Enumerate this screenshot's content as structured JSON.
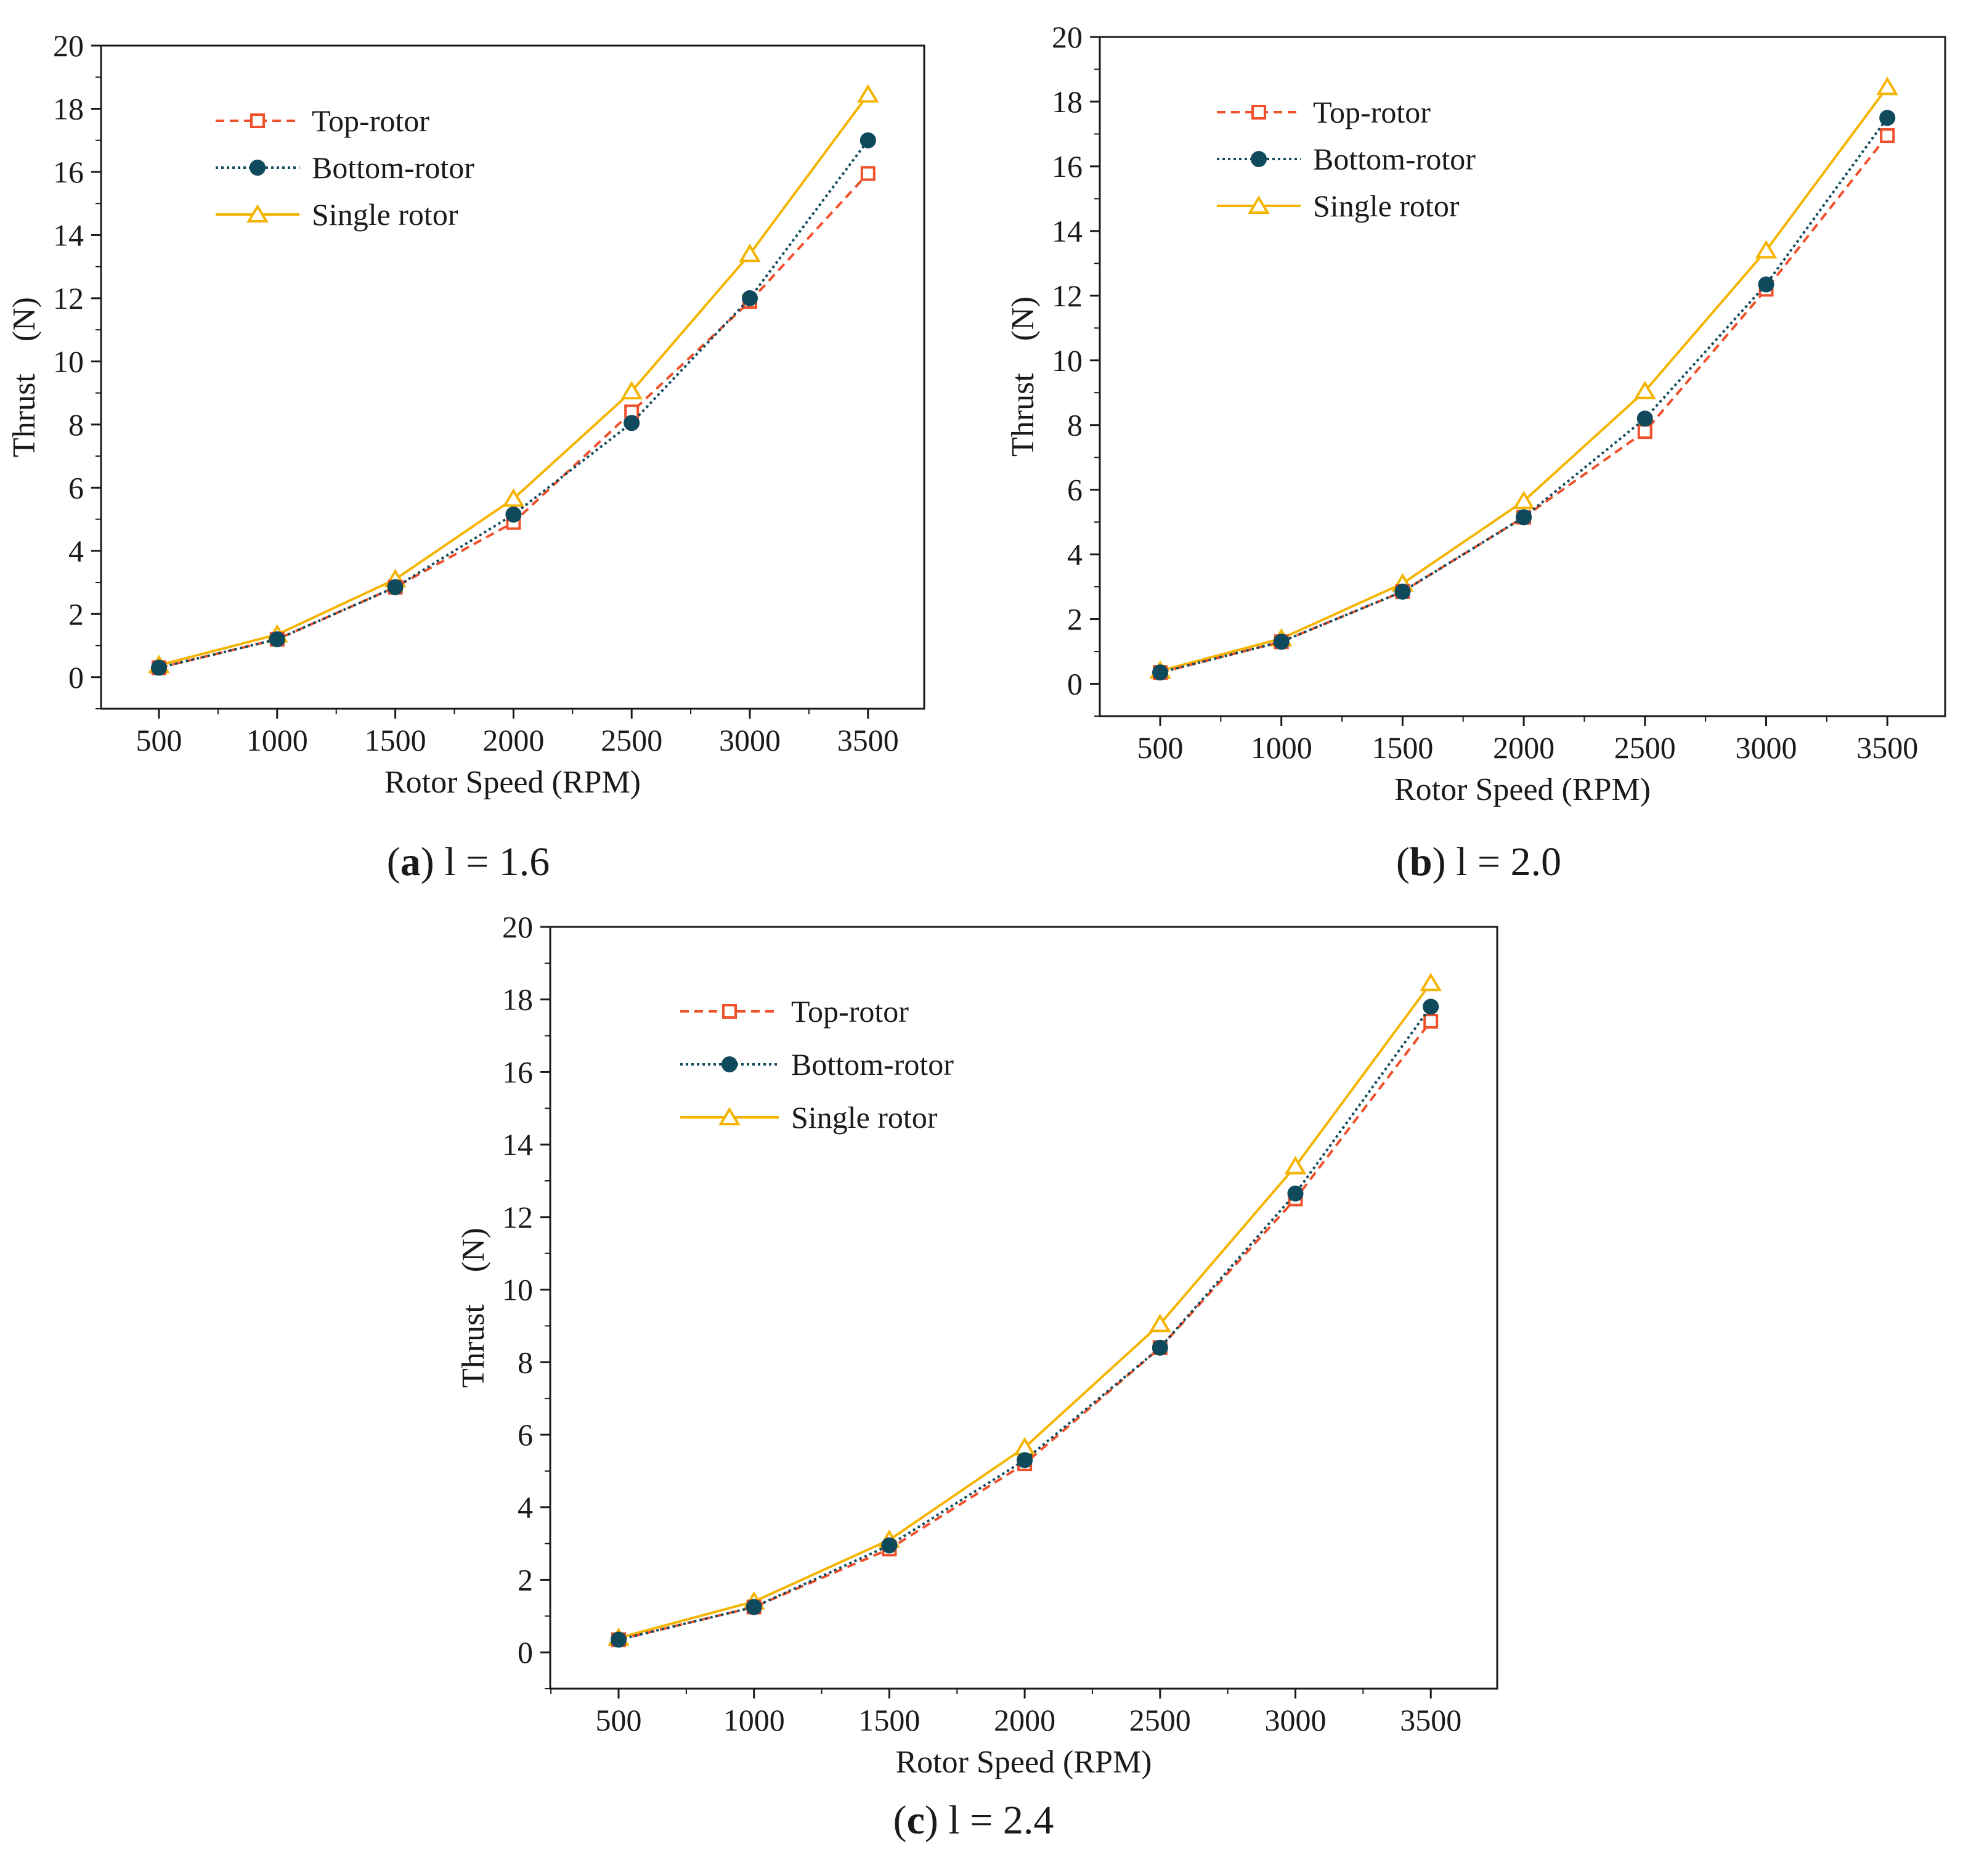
{
  "colors": {
    "top_rotor": "#f0502a",
    "bottom_rotor": "#0f4a5c",
    "single_rotor": "#f5b400",
    "axis": "#1a1a1a"
  },
  "chart_data": [
    {
      "id": "a",
      "type": "line",
      "caption": {
        "letter": "a",
        "text": "l = 1.6"
      },
      "xlabel": "Rotor Speed (RPM)",
      "ylabel": "Thrust　(N)",
      "x": [
        500,
        1000,
        1500,
        2000,
        2500,
        3000,
        3500
      ],
      "xticks": [
        "500",
        "1000",
        "1500",
        "2000",
        "2500",
        "3000",
        "3500"
      ],
      "yticks": [
        "0",
        "2",
        "4",
        "6",
        "8",
        "10",
        "12",
        "14",
        "16",
        "18",
        "20"
      ],
      "ylim": [
        -1,
        20
      ],
      "legend_position": "top-left",
      "series": [
        {
          "name": "Top-rotor",
          "marker": "square",
          "line": "dashed",
          "values": [
            0.3,
            1.2,
            2.85,
            4.9,
            8.4,
            11.9,
            15.95
          ]
        },
        {
          "name": "Bottom-rotor",
          "marker": "circle",
          "line": "dotted",
          "values": [
            0.3,
            1.2,
            2.85,
            5.15,
            8.05,
            12.0,
            17.0
          ]
        },
        {
          "name": "Single rotor",
          "marker": "triangle",
          "line": "solid",
          "values": [
            0.38,
            1.35,
            3.1,
            5.65,
            9.05,
            13.4,
            18.45
          ]
        }
      ]
    },
    {
      "id": "b",
      "type": "line",
      "caption": {
        "letter": "b",
        "text": "l = 2.0"
      },
      "xlabel": "Rotor Speed (RPM)",
      "ylabel": "Thrust　(N)",
      "x": [
        500,
        1000,
        1500,
        2000,
        2500,
        3000,
        3500
      ],
      "xticks": [
        "500",
        "1000",
        "1500",
        "2000",
        "2500",
        "3000",
        "3500"
      ],
      "yticks": [
        "0",
        "2",
        "4",
        "6",
        "8",
        "10",
        "12",
        "14",
        "16",
        "18",
        "20"
      ],
      "ylim": [
        -1,
        20
      ],
      "legend_position": "top-left",
      "series": [
        {
          "name": "Top-rotor",
          "marker": "square",
          "line": "dashed",
          "values": [
            0.35,
            1.3,
            2.85,
            5.15,
            7.8,
            12.2,
            16.95
          ]
        },
        {
          "name": "Bottom-rotor",
          "marker": "circle",
          "line": "dotted",
          "values": [
            0.35,
            1.3,
            2.85,
            5.15,
            8.2,
            12.35,
            17.5
          ]
        },
        {
          "name": "Single rotor",
          "marker": "triangle",
          "line": "solid",
          "values": [
            0.4,
            1.4,
            3.1,
            5.65,
            9.05,
            13.4,
            18.45
          ]
        }
      ]
    },
    {
      "id": "c",
      "type": "line",
      "caption": {
        "letter": "c",
        "text": "l = 2.4"
      },
      "xlabel": "Rotor Speed (RPM)",
      "ylabel": "Thrust　(N)",
      "x": [
        500,
        1000,
        1500,
        2000,
        2500,
        3000,
        3500
      ],
      "xticks": [
        "500",
        "1000",
        "1500",
        "2000",
        "2500",
        "3000",
        "3500"
      ],
      "yticks": [
        "0",
        "2",
        "4",
        "6",
        "8",
        "10",
        "12",
        "14",
        "16",
        "18",
        "20"
      ],
      "ylim": [
        -1,
        20
      ],
      "legend_position": "top-left",
      "series": [
        {
          "name": "Top-rotor",
          "marker": "square",
          "line": "dashed",
          "values": [
            0.35,
            1.25,
            2.85,
            5.2,
            8.4,
            12.5,
            17.4
          ]
        },
        {
          "name": "Bottom-rotor",
          "marker": "circle",
          "line": "dotted",
          "values": [
            0.35,
            1.25,
            2.95,
            5.3,
            8.4,
            12.65,
            17.8
          ]
        },
        {
          "name": "Single rotor",
          "marker": "triangle",
          "line": "solid",
          "values": [
            0.4,
            1.4,
            3.1,
            5.65,
            9.05,
            13.4,
            18.45
          ]
        }
      ]
    }
  ]
}
